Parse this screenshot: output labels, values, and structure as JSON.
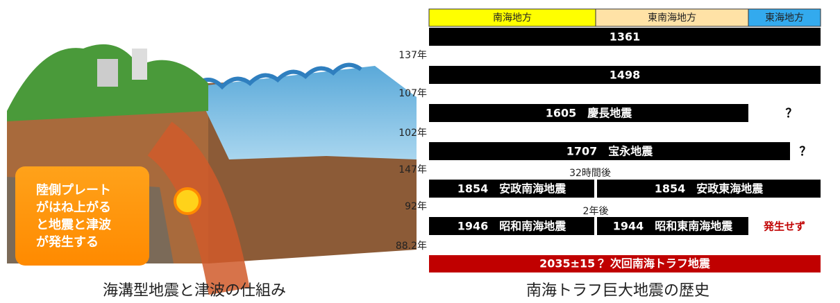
{
  "illustration": {
    "callout": [
      "陸側プレート",
      "がはね上がる",
      "と地震と津波",
      "が発生する"
    ],
    "caption": "海溝型地震と津波の仕組み"
  },
  "timeline": {
    "regions": [
      "南海地方",
      "東南海地方",
      "東海地方"
    ],
    "rows": [
      [
        "1361"
      ],
      [
        "1498"
      ],
      [
        "1605　慶長地震",
        "？"
      ],
      [
        "1707　宝永地震",
        "？"
      ],
      [
        "1854　安政南海地震",
        "1854　安政東海地震"
      ],
      [
        "1946　昭和南海地震",
        "1944　昭和東南海地震",
        "発生せず"
      ]
    ],
    "intervals": [
      "137年",
      "107年",
      "102年",
      "147年",
      "92年",
      "88.2年"
    ],
    "notes": [
      "32時間後",
      "2年後"
    ],
    "forecast": "2035±15？ 次回南海トラフ地震",
    "caption": "南海トラフ巨大地震の歴史"
  }
}
